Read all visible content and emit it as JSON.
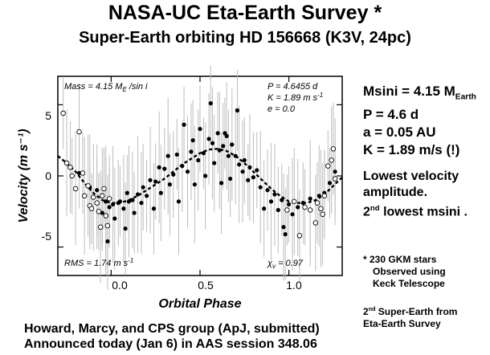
{
  "header": {
    "title": "NASA-UC Eta-Earth Survey *",
    "subtitle": "Super-Earth orbiting HD 156668 (K3V, 24pc)"
  },
  "chart_data": {
    "type": "scatter",
    "xlabel": "Orbital Phase",
    "ylabel": "Velocity (m s⁻¹)",
    "xlim": [
      -0.3,
      1.3
    ],
    "ylim": [
      -7,
      7
    ],
    "xticks": [
      "0.0",
      "0.5",
      "1.0"
    ],
    "yticks": [
      "-5",
      "0",
      "5"
    ],
    "annotations": {
      "mass_prefix": "Mass = 4.15 M",
      "mass_sub": "E",
      "mass_suffix": " /sin i",
      "period": "P = 4.6455 d",
      "k_prefix": "K = 1.89 m s",
      "k_exp": "-1",
      "ecc": "e = 0.0",
      "rms_prefix": "RMS = 1.74 m s",
      "rms_exp": "-1",
      "chi_prefix": "χ",
      "chi_sub": "ν",
      "chi_suffix": " = 0.97"
    },
    "model": {
      "amplitude": 1.89,
      "peak_phase": 0.6,
      "style": "dashed",
      "points": [
        [
          -0.3,
          1.4
        ],
        [
          -0.25,
          0.9
        ],
        [
          -0.2,
          0.3
        ],
        [
          -0.15,
          -0.5
        ],
        [
          -0.1,
          -1.2
        ],
        [
          -0.05,
          -1.7
        ],
        [
          0.0,
          -1.9
        ],
        [
          0.05,
          -1.9
        ],
        [
          0.1,
          -1.7
        ],
        [
          0.15,
          -1.4
        ],
        [
          0.2,
          -1.0
        ],
        [
          0.25,
          -0.6
        ],
        [
          0.3,
          -0.2
        ],
        [
          0.35,
          0.3
        ],
        [
          0.4,
          0.8
        ],
        [
          0.45,
          1.2
        ],
        [
          0.5,
          1.6
        ],
        [
          0.55,
          1.85
        ],
        [
          0.6,
          1.9
        ],
        [
          0.65,
          1.75
        ],
        [
          0.7,
          1.4
        ],
        [
          0.75,
          0.9
        ],
        [
          0.8,
          0.3
        ],
        [
          0.85,
          -0.3
        ],
        [
          0.9,
          -0.9
        ],
        [
          0.95,
          -1.4
        ],
        [
          1.0,
          -1.8
        ],
        [
          1.05,
          -1.9
        ],
        [
          1.1,
          -1.9
        ],
        [
          1.15,
          -1.7
        ],
        [
          1.2,
          -1.3
        ],
        [
          1.25,
          -0.7
        ],
        [
          1.3,
          -0.1
        ]
      ]
    },
    "series": [
      {
        "marker": "filled",
        "points": [
          [
            -0.18,
            0.2
          ],
          [
            -0.12,
            -0.8
          ],
          [
            -0.08,
            -1.0
          ],
          [
            -0.05,
            -2.6
          ],
          [
            -0.03,
            -1.8
          ],
          [
            -0.02,
            -4.6
          ],
          [
            -0.01,
            -2.2
          ],
          [
            0.01,
            -2.0
          ],
          [
            0.02,
            -3.0
          ],
          [
            0.04,
            -1.9
          ],
          [
            0.05,
            -1.8
          ],
          [
            0.07,
            -2.3
          ],
          [
            0.08,
            -3.7
          ],
          [
            0.09,
            -1.2
          ],
          [
            0.1,
            -1.8
          ],
          [
            0.12,
            -1.7
          ],
          [
            0.13,
            -2.6
          ],
          [
            0.15,
            -1.3
          ],
          [
            0.17,
            -1.9
          ],
          [
            0.18,
            -0.8
          ],
          [
            0.2,
            -1.4
          ],
          [
            0.22,
            -0.3
          ],
          [
            0.24,
            -2.3
          ],
          [
            0.25,
            -0.4
          ],
          [
            0.27,
            0.6
          ],
          [
            0.28,
            -1.2
          ],
          [
            0.3,
            0.5
          ],
          [
            0.32,
            1.4
          ],
          [
            0.33,
            -0.6
          ],
          [
            0.35,
            0.1
          ],
          [
            0.37,
            1.5
          ],
          [
            0.38,
            -1.8
          ],
          [
            0.4,
            0.7
          ],
          [
            0.41,
            3.6
          ],
          [
            0.43,
            0.3
          ],
          [
            0.45,
            1.7
          ],
          [
            0.46,
            2.5
          ],
          [
            0.47,
            -0.6
          ],
          [
            0.49,
            1.1
          ],
          [
            0.5,
            3.3
          ],
          [
            0.52,
            1.6
          ],
          [
            0.53,
            0.0
          ],
          [
            0.55,
            2.6
          ],
          [
            0.56,
            5.1
          ],
          [
            0.57,
            2.3
          ],
          [
            0.58,
            0.9
          ],
          [
            0.6,
            3.0
          ],
          [
            0.61,
            1.8
          ],
          [
            0.62,
            -0.5
          ],
          [
            0.63,
            2.1
          ],
          [
            0.64,
            3.0
          ],
          [
            0.65,
            2.8
          ],
          [
            0.66,
            1.4
          ],
          [
            0.67,
            -0.2
          ],
          [
            0.68,
            2.2
          ],
          [
            0.7,
            1.4
          ],
          [
            0.71,
            4.6
          ],
          [
            0.72,
            0.8
          ],
          [
            0.74,
            0.3
          ],
          [
            0.75,
            1.1
          ],
          [
            0.77,
            -0.3
          ],
          [
            0.78,
            0.6
          ],
          [
            0.8,
            -0.1
          ],
          [
            0.82,
            0.4
          ],
          [
            0.84,
            -0.8
          ],
          [
            0.86,
            -2.3
          ],
          [
            0.88,
            -1.0
          ],
          [
            0.9,
            -1.8
          ],
          [
            0.92,
            -1.3
          ],
          [
            0.94,
            -2.4
          ],
          [
            0.96,
            -1.7
          ],
          [
            0.97,
            -3.6
          ],
          [
            0.98,
            -4.1
          ],
          [
            1.0,
            -2.0
          ],
          [
            1.02,
            -2.7
          ],
          [
            1.05,
            -2.2
          ],
          [
            1.08,
            -1.9
          ],
          [
            1.12,
            -1.6
          ],
          [
            1.17,
            -1.4
          ],
          [
            1.2,
            -1.2
          ],
          [
            1.23,
            -0.5
          ],
          [
            1.26,
            0.3
          ]
        ]
      },
      {
        "marker": "open",
        "points": [
          [
            -0.27,
            4.4
          ],
          [
            -0.25,
            0.9
          ],
          [
            -0.23,
            0.6
          ],
          [
            -0.22,
            0.0
          ],
          [
            -0.2,
            -0.9
          ],
          [
            -0.18,
            3.1
          ],
          [
            -0.16,
            0.2
          ],
          [
            -0.15,
            -1.4
          ],
          [
            -0.13,
            -0.7
          ],
          [
            -0.12,
            -2.1
          ],
          [
            -0.11,
            -2.3
          ],
          [
            -0.1,
            -1.5
          ],
          [
            -0.08,
            -1.9
          ],
          [
            -0.07,
            -2.5
          ],
          [
            -0.06,
            -3.6
          ],
          [
            -0.05,
            -1.4
          ],
          [
            -0.04,
            -0.9
          ],
          [
            -0.03,
            -2.8
          ],
          [
            -0.02,
            -3.5
          ],
          [
            -0.01,
            -1.6
          ],
          [
            0.99,
            -2.4
          ],
          [
            1.03,
            -1.8
          ],
          [
            1.06,
            -4.2
          ],
          [
            1.09,
            -2.2
          ],
          [
            1.12,
            -2.4
          ],
          [
            1.15,
            -3.3
          ],
          [
            1.16,
            -1.9
          ],
          [
            1.18,
            -2.3
          ],
          [
            1.19,
            -2.7
          ],
          [
            1.2,
            -1.4
          ],
          [
            1.22,
            0.7
          ],
          [
            1.24,
            1.1
          ],
          [
            1.25,
            1.9
          ],
          [
            1.26,
            -0.2
          ]
        ]
      }
    ]
  },
  "side": {
    "msini_prefix": "Msini = 4.15 M",
    "msini_sub": "Earth",
    "period": "P = 4.6 d",
    "semimajor": "a = 0.05 AU",
    "amplitude": "K = 1.89 m/s (!)",
    "lowest_line1": "Lowest velocity",
    "lowest_line2": "amplitude.",
    "second_num": "2",
    "second_sup": "nd",
    "second_rest": " lowest msini .",
    "note_line1": "* 230 GKM stars",
    "note_line2": "Observed using",
    "note_line3": "Keck Telescope",
    "super_num": "2",
    "super_sup": "nd",
    "super_rest": " Super-Earth from",
    "super_line2": "Eta-Earth Survey"
  },
  "footer": {
    "line1": "Howard, Marcy, and CPS group (ApJ, submitted)",
    "line2": "Announced today (Jan 6) in AAS session 348.06"
  },
  "colors": {
    "errorbar": "#bdbdbd",
    "marker": "#000000",
    "frame": "#000000"
  }
}
